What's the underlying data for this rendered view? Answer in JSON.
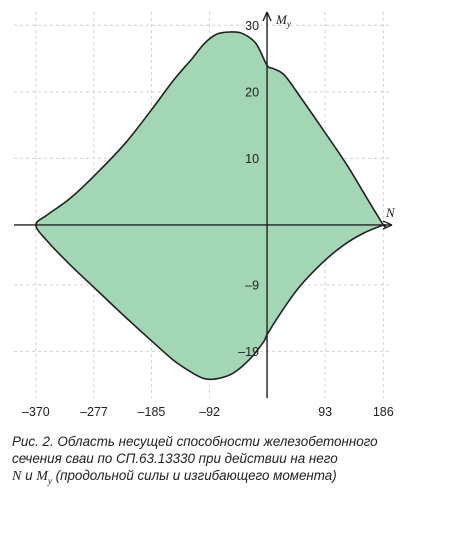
{
  "chart_data": {
    "type": "area",
    "xlabel": "N",
    "ylabel_main": "M",
    "ylabel_sub": "y",
    "xlim": [
      -405,
      200
    ],
    "ylim": [
      -26,
      32
    ],
    "x_ticks": [
      -370,
      -277,
      -185,
      -92,
      93,
      186
    ],
    "x_tick_labels": [
      "–370",
      "–277",
      "–185",
      "–92",
      "93",
      "186"
    ],
    "y_ticks": [
      30,
      20,
      10,
      -9,
      -19
    ],
    "y_tick_labels": [
      "30",
      "20",
      "10",
      "–9",
      "–19"
    ],
    "grid": true,
    "fill_color": "#a3d6b4",
    "edge_color": "#222222",
    "boundary": {
      "x": [
        186,
        160,
        128,
        92,
        55,
        28,
        10,
        0,
        -18,
        -40,
        -60,
        -80,
        -100,
        -120,
        -150,
        -185,
        -225,
        -270,
        -315,
        -352,
        -370,
        -352,
        -315,
        -270,
        -225,
        -185,
        -150,
        -120,
        -100,
        -80,
        -55,
        -28,
        -5,
        0,
        20,
        50,
        85,
        120,
        155,
        186
      ],
      "y": [
        0,
        4,
        9,
        14,
        19,
        22.5,
        23.5,
        24,
        27.3,
        28.8,
        29,
        28.7,
        27.3,
        25,
        21.7,
        17.3,
        12.5,
        8,
        4,
        1.5,
        0,
        -2.4,
        -6,
        -10,
        -14,
        -17.4,
        -20.3,
        -22.2,
        -23.1,
        -23.1,
        -22.3,
        -20.2,
        -17.5,
        -16.5,
        -13.5,
        -9.5,
        -6,
        -3.2,
        -1.2,
        0
      ]
    }
  },
  "caption": {
    "line1": "Рис. 2. Область несущей способности железобетонного",
    "line2": "сечения сваи по СП.63.13330 при действии на него",
    "n_symbol": "N",
    "and_word": " и ",
    "m_symbol": "M",
    "m_sub": "y",
    "line3_rest": " (продольной силы и изгибающего момента)"
  }
}
